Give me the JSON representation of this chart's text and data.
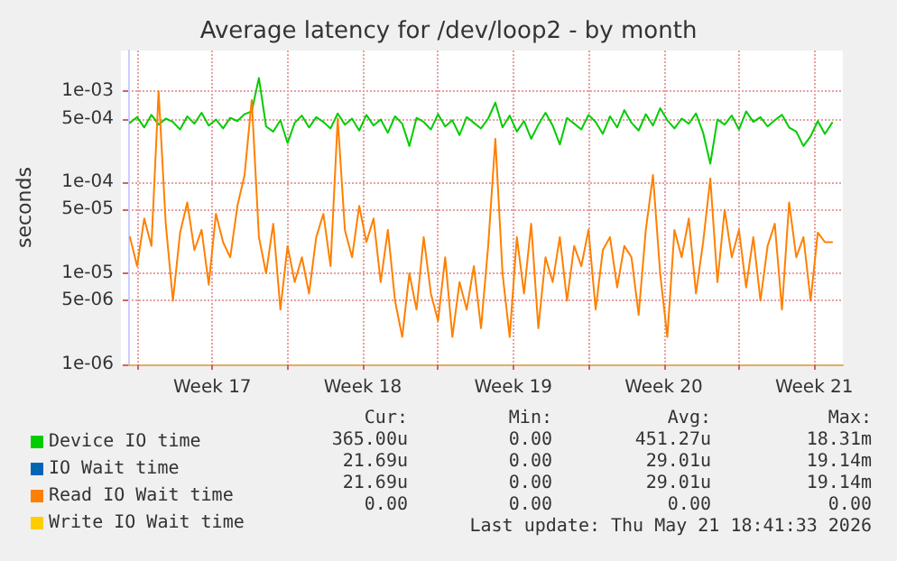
{
  "chart_data": {
    "type": "line",
    "title": "Average latency for /dev/loop2 - by month",
    "ylabel": "seconds",
    "x": [
      "2026-04-19T16:00",
      "2026-04-20T00:00",
      "2026-04-20T08:00",
      "2026-04-20T16:00",
      "2026-04-21T00:00",
      "2026-04-21T08:00",
      "2026-04-21T16:00",
      "2026-04-22T00:00",
      "2026-04-22T08:00",
      "2026-04-22T16:00",
      "2026-04-23T00:00",
      "2026-04-23T08:00",
      "2026-04-23T16:00",
      "2026-04-24T00:00",
      "2026-04-24T08:00",
      "2026-04-24T16:00",
      "2026-04-25T00:00",
      "2026-04-25T08:00",
      "2026-04-25T16:00",
      "2026-04-26T00:00",
      "2026-04-26T08:00",
      "2026-04-26T16:00",
      "2026-04-27T00:00",
      "2026-04-27T08:00",
      "2026-04-27T16:00",
      "2026-04-28T00:00",
      "2026-04-28T08:00",
      "2026-04-28T16:00",
      "2026-04-29T00:00",
      "2026-04-29T08:00",
      "2026-04-29T16:00",
      "2026-04-30T00:00",
      "2026-04-30T08:00",
      "2026-04-30T16:00",
      "2026-05-01T00:00",
      "2026-05-01T08:00",
      "2026-05-01T16:00",
      "2026-05-02T00:00",
      "2026-05-02T08:00",
      "2026-05-02T16:00",
      "2026-05-03T00:00",
      "2026-05-03T08:00",
      "2026-05-03T16:00",
      "2026-05-04T00:00",
      "2026-05-04T08:00",
      "2026-05-04T16:00",
      "2026-05-05T00:00",
      "2026-05-05T08:00",
      "2026-05-05T16:00",
      "2026-05-06T00:00",
      "2026-05-06T08:00",
      "2026-05-06T16:00",
      "2026-05-07T00:00",
      "2026-05-07T08:00",
      "2026-05-07T16:00",
      "2026-05-08T00:00",
      "2026-05-08T08:00",
      "2026-05-08T16:00",
      "2026-05-09T00:00",
      "2026-05-09T08:00",
      "2026-05-09T16:00",
      "2026-05-10T00:00",
      "2026-05-10T08:00",
      "2026-05-10T16:00",
      "2026-05-11T00:00",
      "2026-05-11T08:00",
      "2026-05-11T16:00",
      "2026-05-12T00:00",
      "2026-05-12T08:00",
      "2026-05-12T16:00",
      "2026-05-13T00:00",
      "2026-05-13T08:00",
      "2026-05-13T16:00",
      "2026-05-14T00:00",
      "2026-05-14T08:00",
      "2026-05-14T16:00",
      "2026-05-15T00:00",
      "2026-05-15T08:00",
      "2026-05-15T16:00",
      "2026-05-16T00:00",
      "2026-05-16T08:00",
      "2026-05-16T16:00",
      "2026-05-17T00:00",
      "2026-05-17T08:00",
      "2026-05-17T16:00",
      "2026-05-18T00:00",
      "2026-05-18T08:00",
      "2026-05-18T16:00",
      "2026-05-19T00:00",
      "2026-05-19T08:00",
      "2026-05-19T16:00",
      "2026-05-20T00:00",
      "2026-05-20T08:00",
      "2026-05-20T16:00",
      "2026-05-21T00:00",
      "2026-05-21T08:00",
      "2026-05-21T16:00",
      "2026-05-22T00:00",
      "2026-05-22T08:00"
    ],
    "series": [
      {
        "name": "Device IO time",
        "color": "#00cc00",
        "values": [
          0.00045,
          0.00052,
          0.0004,
          0.00055,
          0.00043,
          0.0005,
          0.00046,
          0.00038,
          0.00053,
          0.00044,
          0.00058,
          0.00042,
          0.00049,
          0.00039,
          0.00051,
          0.00047,
          0.00056,
          0.0006,
          0.0014,
          0.00041,
          0.00036,
          0.00048,
          0.00027,
          0.00045,
          0.00054,
          0.0004,
          0.00052,
          0.00046,
          0.00039,
          0.00057,
          0.00043,
          0.0005,
          0.00037,
          0.00055,
          0.00042,
          0.00049,
          0.00035,
          0.00053,
          0.00044,
          0.00025,
          0.00051,
          0.00046,
          0.00038,
          0.00056,
          0.00041,
          0.00048,
          0.00033,
          0.00052,
          0.00045,
          0.00039,
          0.0005,
          0.00075,
          0.0004,
          0.00054,
          0.00036,
          0.00047,
          0.0003,
          0.00043,
          0.00058,
          0.00042,
          0.00026,
          0.00051,
          0.00044,
          0.00038,
          0.00055,
          0.00046,
          0.00034,
          0.00053,
          0.0004,
          0.00062,
          0.00045,
          0.00037,
          0.00056,
          0.00042,
          0.00065,
          0.00048,
          0.00039,
          0.0005,
          0.00044,
          0.00057,
          0.00035,
          0.00016,
          0.00049,
          0.00043,
          0.00054,
          0.00038,
          0.0006,
          0.00046,
          0.00052,
          0.00041,
          0.00048,
          0.00055,
          0.0004,
          0.00036,
          0.00025,
          0.00032,
          0.00047,
          0.00034,
          0.00045
        ]
      },
      {
        "name": "IO Wait time",
        "color": "#0066b3",
        "values": [
          null,
          null,
          null,
          null,
          null,
          null,
          null,
          null,
          null,
          null,
          null,
          null,
          null,
          null,
          null,
          null,
          null,
          null,
          null,
          null,
          null,
          null,
          null,
          null,
          null,
          null,
          null,
          null,
          null,
          null,
          null,
          null,
          null,
          null,
          null,
          null,
          null,
          null,
          null,
          null,
          null,
          null,
          null,
          null,
          null,
          null,
          null,
          null,
          null,
          null,
          null,
          null,
          null,
          null,
          null,
          null,
          null,
          null,
          null,
          null,
          null,
          null,
          null,
          null,
          null,
          null,
          null,
          null,
          null,
          null,
          null,
          null,
          null,
          null,
          null,
          null,
          null,
          null,
          null,
          null,
          null,
          null,
          null,
          null,
          null,
          null,
          null,
          null,
          null,
          null,
          null,
          null,
          null,
          null,
          null,
          null,
          null,
          null,
          null
        ]
      },
      {
        "name": "Read IO Wait time",
        "color": "#ff8000",
        "values": [
          2.5e-05,
          1.2e-05,
          4e-05,
          2e-05,
          0.001,
          3.5e-05,
          5e-06,
          2.8e-05,
          6e-05,
          1.8e-05,
          3e-05,
          7.5e-06,
          4.5e-05,
          2.2e-05,
          1.5e-05,
          5.5e-05,
          0.00012,
          0.0008,
          2.5e-05,
          1e-05,
          3.5e-05,
          4e-06,
          2e-05,
          8e-06,
          1.5e-05,
          6e-06,
          2.5e-05,
          4.5e-05,
          1.2e-05,
          0.0005,
          3e-05,
          1.5e-05,
          5.5e-05,
          2.2e-05,
          4e-05,
          8e-06,
          3e-05,
          5e-06,
          2e-06,
          1e-05,
          4e-06,
          2.5e-05,
          6e-06,
          3e-06,
          1.5e-05,
          2e-06,
          8e-06,
          4e-06,
          1.2e-05,
          2.5e-06,
          2e-05,
          0.0003,
          1e-05,
          2e-06,
          2.5e-05,
          6e-06,
          3.5e-05,
          2.5e-06,
          1.5e-05,
          8e-06,
          2.5e-05,
          5e-06,
          2e-05,
          1.2e-05,
          3e-05,
          4e-06,
          1.8e-05,
          2.5e-05,
          7e-06,
          2e-05,
          1.5e-05,
          3.5e-06,
          3e-05,
          0.00012,
          1e-05,
          2e-06,
          3e-05,
          1.5e-05,
          4e-05,
          6e-06,
          2.2e-05,
          0.00011,
          8e-06,
          5e-05,
          1.5e-05,
          3e-05,
          7e-06,
          2.5e-05,
          5e-06,
          2e-05,
          3.5e-05,
          4e-06,
          6e-05,
          1.5e-05,
          2.5e-05,
          5e-06,
          2.8e-05,
          2.2e-05,
          2.2e-05
        ]
      },
      {
        "name": "Write IO Wait time",
        "color": "#ffcc00",
        "values": [
          null,
          null,
          null,
          null,
          null,
          null,
          null,
          null,
          null,
          null,
          null,
          null,
          null,
          null,
          null,
          null,
          null,
          null,
          null,
          null,
          null,
          null,
          null,
          null,
          null,
          null,
          null,
          null,
          null,
          null,
          null,
          null,
          null,
          null,
          null,
          null,
          null,
          null,
          null,
          null,
          null,
          null,
          null,
          null,
          null,
          null,
          null,
          null,
          null,
          null,
          null,
          null,
          null,
          null,
          null,
          null,
          null,
          null,
          null,
          null,
          null,
          null,
          null,
          null,
          null,
          null,
          null,
          null,
          null,
          null,
          null,
          null,
          null,
          null,
          null,
          null,
          null,
          null,
          null,
          null,
          null,
          null,
          null,
          null,
          null,
          null,
          null,
          null,
          null,
          null,
          null,
          null,
          null,
          null,
          null,
          null,
          null,
          null,
          null
        ]
      }
    ],
    "log": true,
    "xlim": [
      "2026-04-19T14:00",
      "2026-05-22T20:00"
    ],
    "xticks": [
      {
        "value": "2026-04-20T00:00",
        "label": null
      },
      {
        "value": "2026-04-23T12:00",
        "label": "Week 17"
      },
      {
        "value": "2026-04-27T00:00",
        "label": null
      },
      {
        "value": "2026-04-30T12:00",
        "label": "Week 18"
      },
      {
        "value": "2026-05-04T00:00",
        "label": null
      },
      {
        "value": "2026-05-07T12:00",
        "label": "Week 19"
      },
      {
        "value": "2026-05-11T00:00",
        "label": null
      },
      {
        "value": "2026-05-14T12:00",
        "label": "Week 20"
      },
      {
        "value": "2026-05-18T00:00",
        "label": null
      },
      {
        "value": "2026-05-21T12:00",
        "label": "Week 21"
      }
    ],
    "ylim": [
      1e-06,
      0.0028
    ],
    "yticks": [
      {
        "value": 1e-06,
        "label": "1e-06"
      },
      {
        "value": 5e-06,
        "label": "5e-06"
      },
      {
        "value": 1e-05,
        "label": "1e-05"
      },
      {
        "value": 5e-05,
        "label": "5e-05"
      },
      {
        "value": 0.0001,
        "label": "1e-04"
      },
      {
        "value": 0.0005,
        "label": "5e-04"
      },
      {
        "value": 0.001,
        "label": "1e-03"
      }
    ],
    "grid": true,
    "legend": "bottom",
    "line_style": "solid",
    "marker": "none",
    "annotations": [
      "Cur:",
      "Min:",
      "Avg:",
      "Max:",
      "365.00u",
      "0.00",
      "451.27u",
      "18.31m",
      "21.69u",
      "0.00",
      "29.01u",
      "19.14m",
      "21.69u",
      "0.00",
      "29.01u",
      "19.14m",
      "0.00",
      "0.00",
      "0.00",
      "0.00",
      "Last update: Thu May 21 18:41:33 2026"
    ]
  }
}
